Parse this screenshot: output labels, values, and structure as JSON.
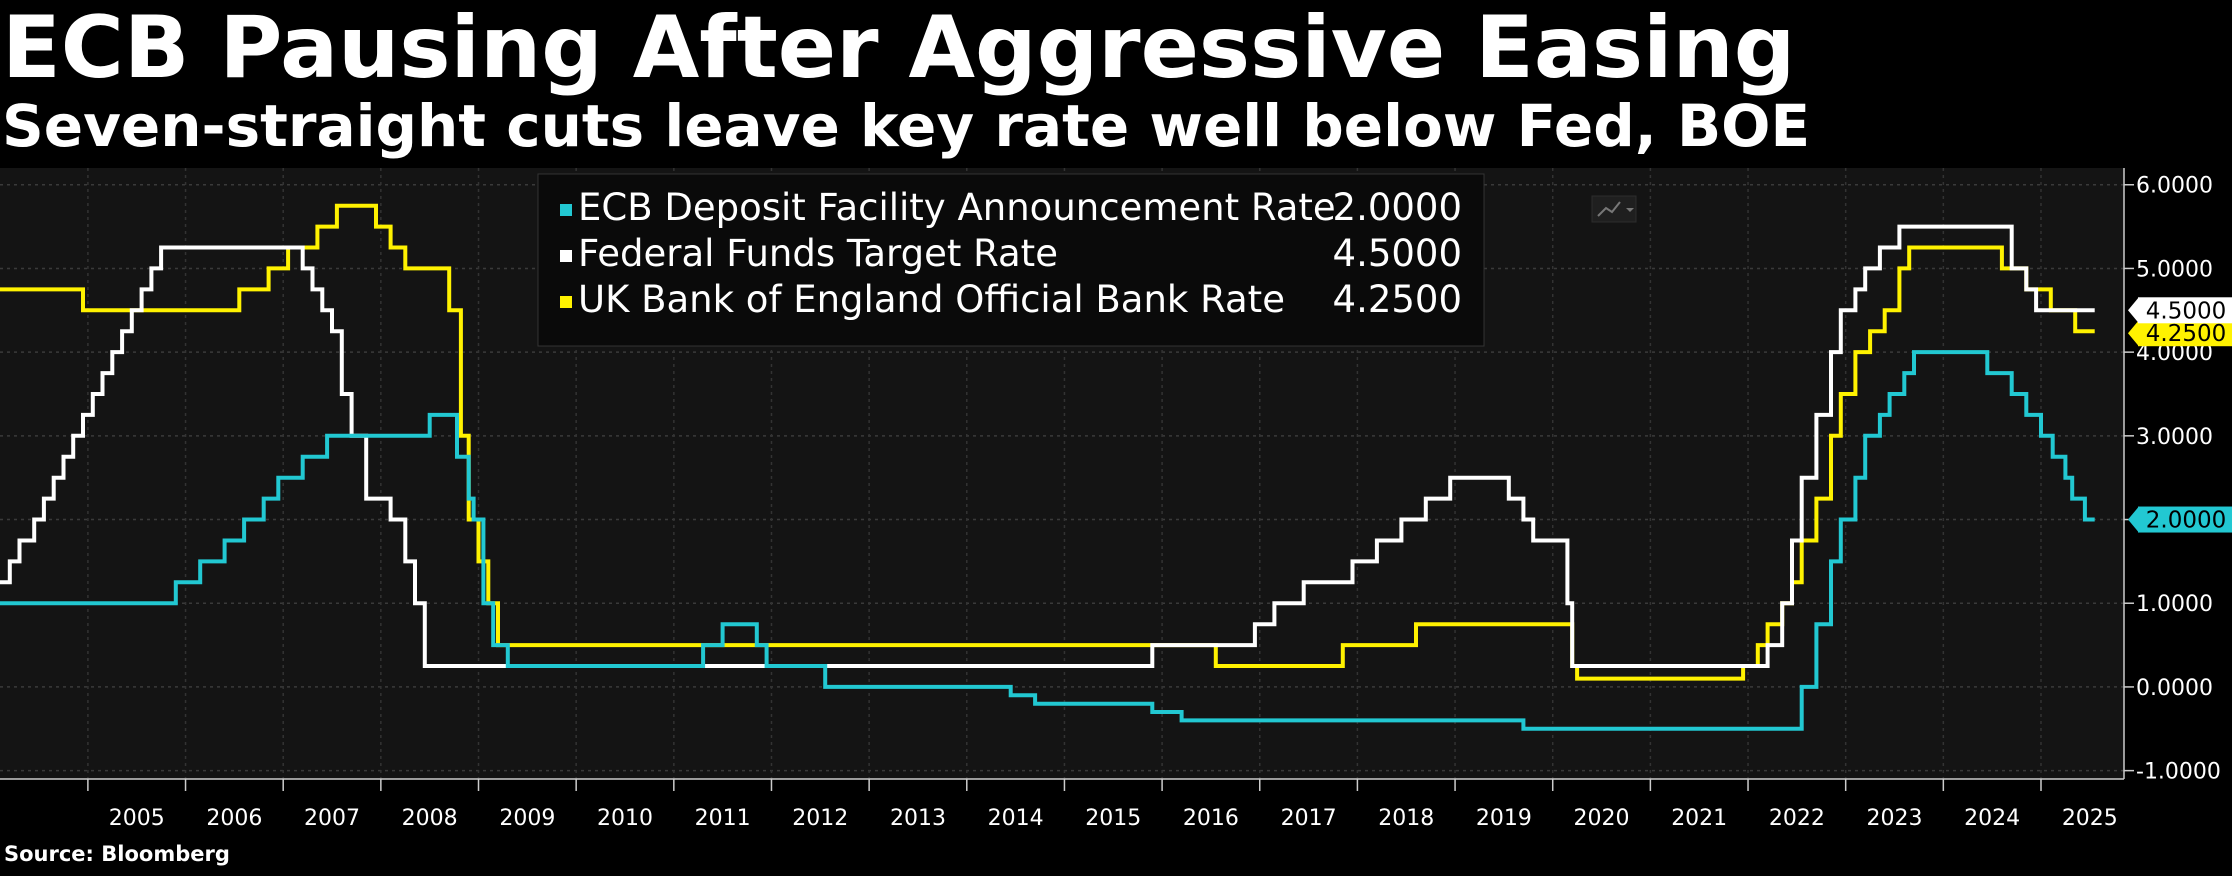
{
  "header": {
    "title": "ECB Pausing After Aggressive Easing",
    "subtitle": "Seven-straight cuts leave key rate well below Fed, BOE"
  },
  "footer": {
    "source": "Source: Bloomberg"
  },
  "colors": {
    "ecb": "#22c8d2",
    "fed": "#ffffff",
    "boe": "#fff200",
    "plot_bg": "#141414"
  },
  "chart_data": {
    "type": "line",
    "step": true,
    "title": "ECB Pausing After Aggressive Easing",
    "subtitle": "Seven-straight cuts leave key rate well below Fed, BOE",
    "xlim": [
      2004.1,
      2025.85
    ],
    "ylim": [
      -1.1,
      6.2
    ],
    "y_ticks": [
      6,
      5,
      4,
      3,
      2,
      1,
      0,
      -1
    ],
    "y_tick_labels": [
      "6.0000",
      "5.0000",
      "4.0000",
      "3.0000",
      "2.0000",
      "1.0000",
      "0.0000",
      "-1.0000"
    ],
    "x_tick_labels": [
      "2005",
      "2006",
      "2007",
      "2008",
      "2009",
      "2010",
      "2011",
      "2012",
      "2013",
      "2014",
      "2015",
      "2016",
      "2017",
      "2018",
      "2019",
      "2020",
      "2021",
      "2022",
      "2023",
      "2024",
      "2025"
    ],
    "legend": {
      "position": "top-center",
      "show_values": true
    },
    "series": [
      {
        "name": "ECB Deposit Facility Announcement Rate",
        "last_value": "2.0000",
        "color": "#22c8d2",
        "points": [
          [
            2004.1,
            1.0
          ],
          [
            2005.9,
            1.25
          ],
          [
            2006.15,
            1.5
          ],
          [
            2006.4,
            1.75
          ],
          [
            2006.6,
            2.0
          ],
          [
            2006.8,
            2.25
          ],
          [
            2006.95,
            2.5
          ],
          [
            2007.2,
            2.75
          ],
          [
            2007.45,
            3.0
          ],
          [
            2008.5,
            3.25
          ],
          [
            2008.78,
            2.75
          ],
          [
            2008.9,
            2.25
          ],
          [
            2008.95,
            2.0
          ],
          [
            2009.05,
            1.0
          ],
          [
            2009.15,
            0.5
          ],
          [
            2009.3,
            0.25
          ],
          [
            2011.3,
            0.5
          ],
          [
            2011.5,
            0.75
          ],
          [
            2011.85,
            0.5
          ],
          [
            2011.95,
            0.25
          ],
          [
            2012.55,
            0.0
          ],
          [
            2014.45,
            -0.1
          ],
          [
            2014.7,
            -0.2
          ],
          [
            2015.9,
            -0.3
          ],
          [
            2016.2,
            -0.4
          ],
          [
            2019.7,
            -0.5
          ],
          [
            2022.55,
            0.0
          ],
          [
            2022.7,
            0.75
          ],
          [
            2022.85,
            1.5
          ],
          [
            2022.95,
            2.0
          ],
          [
            2023.1,
            2.5
          ],
          [
            2023.2,
            3.0
          ],
          [
            2023.35,
            3.25
          ],
          [
            2023.45,
            3.5
          ],
          [
            2023.6,
            3.75
          ],
          [
            2023.7,
            4.0
          ],
          [
            2024.45,
            3.75
          ],
          [
            2024.7,
            3.5
          ],
          [
            2024.85,
            3.25
          ],
          [
            2025.0,
            3.0
          ],
          [
            2025.12,
            2.75
          ],
          [
            2025.25,
            2.5
          ],
          [
            2025.32,
            2.25
          ],
          [
            2025.45,
            2.0
          ],
          [
            2025.55,
            2.0
          ]
        ]
      },
      {
        "name": "Federal Funds Target Rate",
        "last_value": "4.5000",
        "color": "#ffffff",
        "points": [
          [
            2004.1,
            1.25
          ],
          [
            2004.2,
            1.5
          ],
          [
            2004.3,
            1.75
          ],
          [
            2004.45,
            2.0
          ],
          [
            2004.55,
            2.25
          ],
          [
            2004.65,
            2.5
          ],
          [
            2004.75,
            2.75
          ],
          [
            2004.85,
            3.0
          ],
          [
            2004.95,
            3.25
          ],
          [
            2005.05,
            3.5
          ],
          [
            2005.15,
            3.75
          ],
          [
            2005.25,
            4.0
          ],
          [
            2005.35,
            4.25
          ],
          [
            2005.45,
            4.5
          ],
          [
            2005.55,
            4.75
          ],
          [
            2005.65,
            5.0
          ],
          [
            2005.75,
            5.25
          ],
          [
            2007.2,
            5.0
          ],
          [
            2007.3,
            4.75
          ],
          [
            2007.4,
            4.5
          ],
          [
            2007.5,
            4.25
          ],
          [
            2007.6,
            3.5
          ],
          [
            2007.7,
            3.0
          ],
          [
            2007.85,
            2.25
          ],
          [
            2008.1,
            2.0
          ],
          [
            2008.25,
            1.5
          ],
          [
            2008.35,
            1.0
          ],
          [
            2008.45,
            0.25
          ],
          [
            2015.9,
            0.5
          ],
          [
            2016.95,
            0.75
          ],
          [
            2017.15,
            1.0
          ],
          [
            2017.45,
            1.25
          ],
          [
            2017.95,
            1.5
          ],
          [
            2018.2,
            1.75
          ],
          [
            2018.45,
            2.0
          ],
          [
            2018.7,
            2.25
          ],
          [
            2018.95,
            2.5
          ],
          [
            2019.55,
            2.25
          ],
          [
            2019.7,
            2.0
          ],
          [
            2019.8,
            1.75
          ],
          [
            2020.15,
            1.0
          ],
          [
            2020.2,
            0.25
          ],
          [
            2022.2,
            0.5
          ],
          [
            2022.35,
            1.0
          ],
          [
            2022.45,
            1.75
          ],
          [
            2022.55,
            2.5
          ],
          [
            2022.7,
            3.25
          ],
          [
            2022.85,
            4.0
          ],
          [
            2022.95,
            4.5
          ],
          [
            2023.1,
            4.75
          ],
          [
            2023.2,
            5.0
          ],
          [
            2023.35,
            5.25
          ],
          [
            2023.55,
            5.5
          ],
          [
            2024.7,
            5.0
          ],
          [
            2024.85,
            4.75
          ],
          [
            2024.95,
            4.5
          ],
          [
            2025.55,
            4.5
          ]
        ]
      },
      {
        "name": "UK Bank of England Official Bank Rate",
        "last_value": "4.2500",
        "color": "#fff200",
        "points": [
          [
            2004.1,
            4.75
          ],
          [
            2004.95,
            4.5
          ],
          [
            2006.55,
            4.75
          ],
          [
            2006.85,
            5.0
          ],
          [
            2007.05,
            5.25
          ],
          [
            2007.35,
            5.5
          ],
          [
            2007.55,
            5.75
          ],
          [
            2007.95,
            5.5
          ],
          [
            2008.1,
            5.25
          ],
          [
            2008.25,
            5.0
          ],
          [
            2008.7,
            4.5
          ],
          [
            2008.82,
            3.0
          ],
          [
            2008.9,
            2.0
          ],
          [
            2009.0,
            1.5
          ],
          [
            2009.1,
            1.0
          ],
          [
            2009.2,
            0.5
          ],
          [
            2016.55,
            0.25
          ],
          [
            2017.85,
            0.5
          ],
          [
            2018.6,
            0.75
          ],
          [
            2020.2,
            0.25
          ],
          [
            2020.25,
            0.1
          ],
          [
            2021.95,
            0.25
          ],
          [
            2022.1,
            0.5
          ],
          [
            2022.2,
            0.75
          ],
          [
            2022.35,
            1.0
          ],
          [
            2022.45,
            1.25
          ],
          [
            2022.55,
            1.75
          ],
          [
            2022.7,
            2.25
          ],
          [
            2022.85,
            3.0
          ],
          [
            2022.95,
            3.5
          ],
          [
            2023.1,
            4.0
          ],
          [
            2023.25,
            4.25
          ],
          [
            2023.4,
            4.5
          ],
          [
            2023.55,
            5.0
          ],
          [
            2023.65,
            5.25
          ],
          [
            2024.6,
            5.0
          ],
          [
            2024.85,
            4.75
          ],
          [
            2025.1,
            4.5
          ],
          [
            2025.35,
            4.25
          ],
          [
            2025.55,
            4.25
          ]
        ]
      }
    ]
  },
  "toolbar": {
    "chart_type_icon": "line-chart-icon"
  }
}
